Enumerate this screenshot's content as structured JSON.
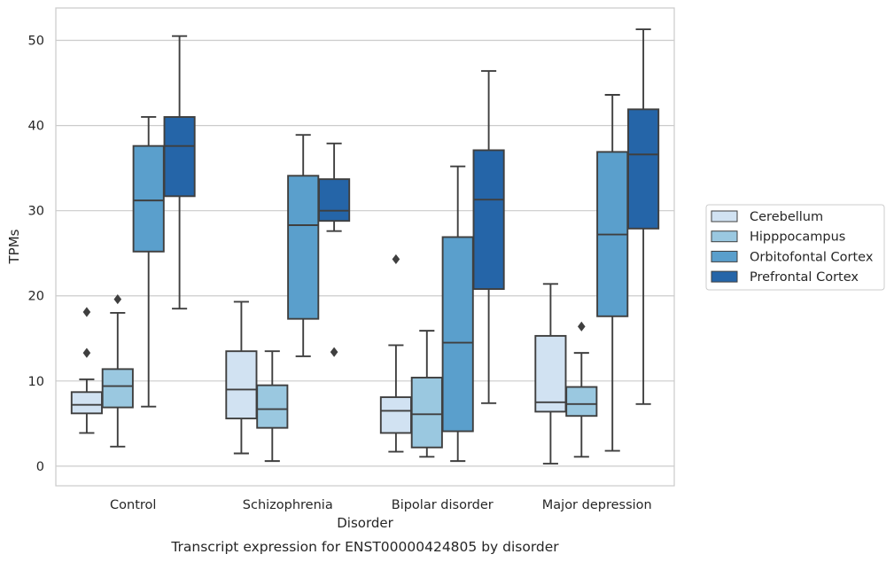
{
  "chart_data": {
    "type": "box",
    "xlabel": "Disorder",
    "ylabel": "TPMs",
    "caption": "Transcript expression for ENST00000424805 by disorder",
    "ylim": [
      -2.3,
      53.8
    ],
    "yticks": [
      0,
      10,
      20,
      30,
      40,
      50
    ],
    "grid": "horizontal",
    "legend_position": "right",
    "categories": [
      "Control",
      "Schizophrenia",
      "Bipolar disorder",
      "Major depression"
    ],
    "series": [
      {
        "name": "Cerebellum",
        "color": "#d1e2f2",
        "boxes": [
          {
            "whislo": 3.9,
            "q1": 6.2,
            "med": 7.2,
            "q3": 8.7,
            "whishi": 10.2,
            "fliers": [
              13.3,
              18.1
            ]
          },
          {
            "whislo": 1.5,
            "q1": 5.6,
            "med": 9.0,
            "q3": 13.5,
            "whishi": 19.3,
            "fliers": []
          },
          {
            "whislo": 1.7,
            "q1": 3.9,
            "med": 6.5,
            "q3": 8.1,
            "whishi": 14.2,
            "fliers": [
              24.3
            ]
          },
          {
            "whislo": 0.3,
            "q1": 6.4,
            "med": 7.5,
            "q3": 15.3,
            "whishi": 21.4,
            "fliers": []
          }
        ]
      },
      {
        "name": "Hipppocampus",
        "color": "#9ac8e0",
        "boxes": [
          {
            "whislo": 2.3,
            "q1": 6.9,
            "med": 9.4,
            "q3": 11.4,
            "whishi": 18.0,
            "fliers": [
              19.6
            ]
          },
          {
            "whislo": 0.6,
            "q1": 4.5,
            "med": 6.7,
            "q3": 9.5,
            "whishi": 13.5,
            "fliers": []
          },
          {
            "whislo": 1.1,
            "q1": 2.2,
            "med": 6.1,
            "q3": 10.4,
            "whishi": 15.9,
            "fliers": []
          },
          {
            "whislo": 1.1,
            "q1": 5.9,
            "med": 7.3,
            "q3": 9.3,
            "whishi": 13.3,
            "fliers": [
              16.4
            ]
          }
        ]
      },
      {
        "name": "Orbitofontal Cortex",
        "color": "#5a9fcc",
        "boxes": [
          {
            "whislo": 7.0,
            "q1": 25.2,
            "med": 31.2,
            "q3": 37.6,
            "whishi": 41.0,
            "fliers": []
          },
          {
            "whislo": 12.9,
            "q1": 17.3,
            "med": 28.3,
            "q3": 34.1,
            "whishi": 38.9,
            "fliers": []
          },
          {
            "whislo": 0.6,
            "q1": 4.1,
            "med": 14.5,
            "q3": 26.9,
            "whishi": 35.2,
            "fliers": []
          },
          {
            "whislo": 1.8,
            "q1": 17.6,
            "med": 27.2,
            "q3": 36.9,
            "whishi": 43.6,
            "fliers": []
          }
        ]
      },
      {
        "name": "Prefrontal Cortex",
        "color": "#2565a8",
        "boxes": [
          {
            "whislo": 18.5,
            "q1": 31.7,
            "med": 37.6,
            "q3": 41.0,
            "whishi": 50.5,
            "fliers": []
          },
          {
            "whislo": 27.6,
            "q1": 28.8,
            "med": 30.0,
            "q3": 33.7,
            "whishi": 37.9,
            "fliers": [
              13.4
            ]
          },
          {
            "whislo": 7.4,
            "q1": 20.8,
            "med": 31.3,
            "q3": 37.1,
            "whishi": 46.4,
            "fliers": []
          },
          {
            "whislo": 7.3,
            "q1": 27.9,
            "med": 36.6,
            "q3": 41.9,
            "whishi": 51.3,
            "fliers": []
          }
        ]
      }
    ]
  }
}
